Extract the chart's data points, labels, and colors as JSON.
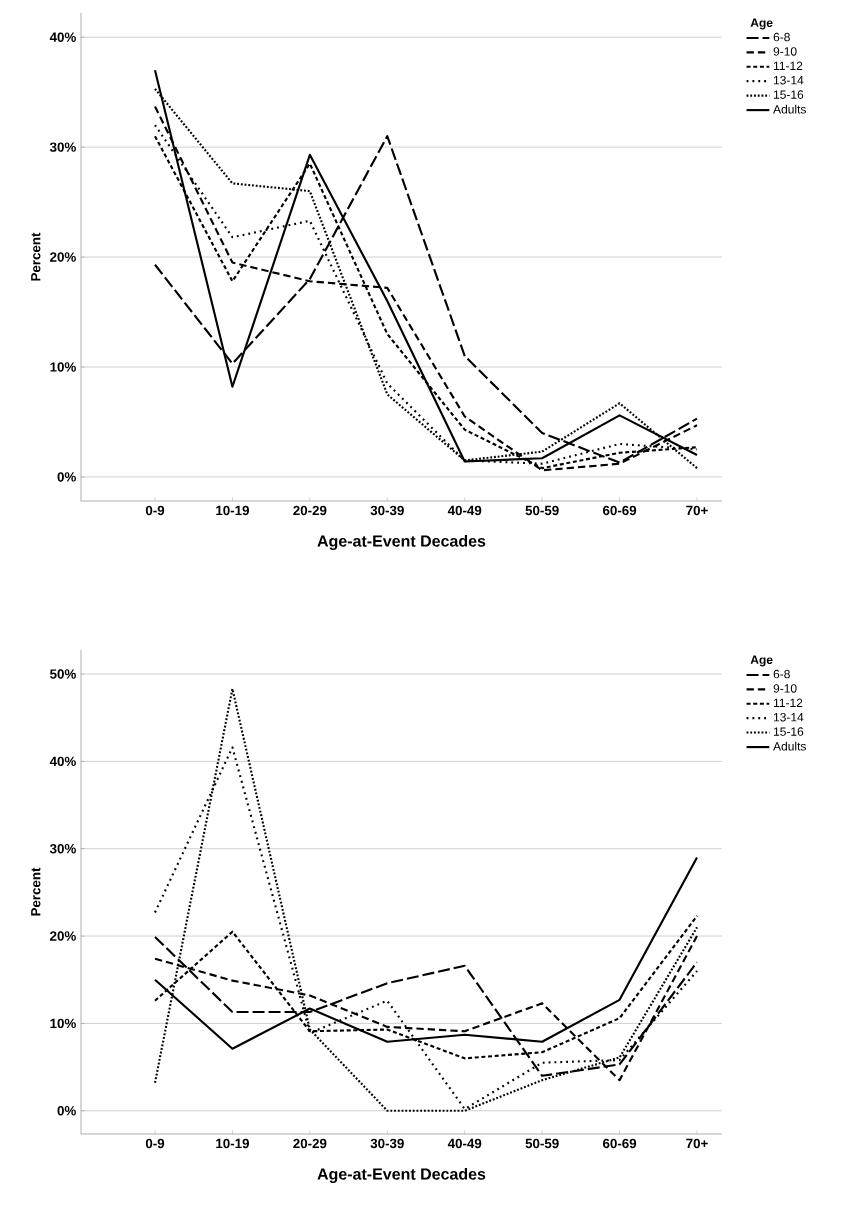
{
  "chart_data": [
    {
      "type": "line",
      "xlabel": "Age-at-Event Decades",
      "ylabel": "Percent",
      "legend_title": "Age",
      "legend": "top right",
      "grid": "y",
      "categories": [
        "0-9",
        "10-19",
        "20-29",
        "30-39",
        "40-49",
        "50-59",
        "60-69",
        "70+"
      ],
      "ylim": [
        -2.19,
        42.2
      ],
      "yticks": [
        {
          "value": 0,
          "label": "0%"
        },
        {
          "value": 10,
          "label": "10%"
        },
        {
          "value": 20,
          "label": "20%"
        },
        {
          "value": 30,
          "label": "30%"
        },
        {
          "value": 40,
          "label": "40%"
        }
      ],
      "series": [
        {
          "name": "6-8",
          "color": "#000000",
          "line_style": "dashed",
          "values": [
            19.3,
            10.3,
            18,
            31,
            11,
            4,
            1.3,
            5.3
          ]
        },
        {
          "name": "9-10",
          "color": "#000000",
          "line_style": "dashed",
          "values": [
            33.7,
            19.5,
            17.8,
            17.2,
            5.5,
            0.6,
            1.2,
            4.7
          ]
        },
        {
          "name": "11-12",
          "color": "#000000",
          "line_style": "dashed",
          "values": [
            31,
            17.8,
            28.5,
            13,
            4.3,
            0.8,
            2.2,
            2.7
          ]
        },
        {
          "name": "13-14",
          "color": "#000000",
          "line_style": "dotted",
          "values": [
            32,
            21.8,
            23.3,
            8.5,
            1.5,
            1.2,
            3,
            2.5
          ]
        },
        {
          "name": "15-16",
          "color": "#000000",
          "line_style": "dotted",
          "values": [
            35.3,
            26.7,
            26,
            7.5,
            1.5,
            2.3,
            6.7,
            0.8
          ]
        },
        {
          "name": "Adults",
          "color": "#000000",
          "line_style": "solid",
          "values": [
            37,
            8.2,
            29.3,
            16,
            1.4,
            1.7,
            5.6,
            2.0
          ]
        }
      ]
    },
    {
      "type": "line",
      "xlabel": "Age-at-Event Decades",
      "ylabel": "Percent",
      "legend_title": "Age",
      "legend": "top right",
      "grid": "y",
      "categories": [
        "0-9",
        "10-19",
        "20-29",
        "30-39",
        "40-49",
        "50-59",
        "60-69",
        "70+"
      ],
      "ylim": [
        -2.66,
        52.75
      ],
      "yticks": [
        {
          "value": 0,
          "label": "0%"
        },
        {
          "value": 10,
          "label": "10%"
        },
        {
          "value": 20,
          "label": "20%"
        },
        {
          "value": 30,
          "label": "30%"
        },
        {
          "value": 40,
          "label": "40%"
        },
        {
          "value": 50,
          "label": "50%"
        }
      ],
      "series": [
        {
          "name": "6-8",
          "color": "#000000",
          "line_style": "dashed",
          "values": [
            19.9,
            11.3,
            11.3,
            14.6,
            16.6,
            4,
            5.3,
            17
          ]
        },
        {
          "name": "9-10",
          "color": "#000000",
          "line_style": "dashed",
          "values": [
            17.4,
            14.9,
            13.2,
            9.6,
            9.1,
            12.3,
            3.5,
            20
          ]
        },
        {
          "name": "11-12",
          "color": "#000000",
          "line_style": "dashed",
          "values": [
            12.6,
            20.5,
            9.1,
            9.3,
            6,
            6.7,
            10.6,
            22.3
          ]
        },
        {
          "name": "13-14",
          "color": "#000000",
          "line_style": "dotted",
          "values": [
            22.7,
            41.6,
            8.9,
            12.6,
            0.2,
            5.5,
            5.8,
            16
          ]
        },
        {
          "name": "15-16",
          "color": "#000000",
          "line_style": "dotted",
          "values": [
            3.2,
            48.3,
            9.3,
            0,
            0,
            3.5,
            6.1,
            21
          ]
        },
        {
          "name": "Adults",
          "color": "#000000",
          "line_style": "solid",
          "values": [
            15,
            7.1,
            11.7,
            7.9,
            8.7,
            7.9,
            12.7,
            29
          ]
        }
      ]
    }
  ]
}
